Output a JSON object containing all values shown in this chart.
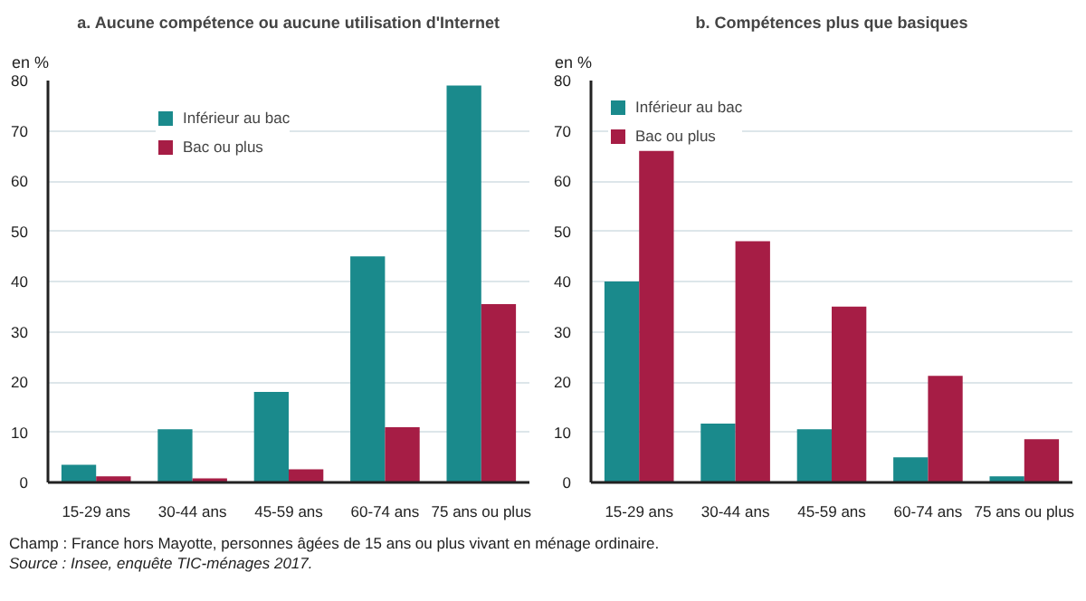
{
  "chart_data": [
    {
      "type": "bar",
      "title": "a. Aucune compétence ou aucune utilisation d'Internet",
      "ylabel": "en %",
      "categories": [
        "15-29 ans",
        "30-44 ans",
        "45-59 ans",
        "60-74 ans",
        "75 ans ou plus"
      ],
      "series": [
        {
          "name": "Inférieur au bac",
          "color": "#1a8a8c",
          "values": [
            3.5,
            10.6,
            18,
            45,
            79
          ]
        },
        {
          "name": "Bac ou plus",
          "color": "#a61d45",
          "values": [
            1.2,
            0.8,
            2.6,
            11,
            35.5
          ]
        }
      ],
      "ylim": [
        0,
        80
      ],
      "yticks": [
        0,
        10,
        20,
        30,
        40,
        50,
        60,
        70,
        80
      ],
      "grid": "y",
      "legend": "top",
      "annotations": [
        "Champ : France hors Mayotte, personnes âgées de 15 ans ou plus vivant en ménage ordinaire.",
        "Source : Insee, enquête TIC-ménages 2017."
      ]
    },
    {
      "type": "bar",
      "title": "b. Compétences plus que basiques",
      "ylabel": "en %",
      "categories": [
        "15-29 ans",
        "30-44 ans",
        "45-59 ans",
        "60-74 ans",
        "75 ans ou plus"
      ],
      "series": [
        {
          "name": "Inférieur au bac",
          "color": "#1a8a8c",
          "values": [
            40,
            11.7,
            10.6,
            5,
            1.2
          ]
        },
        {
          "name": "Bac ou plus",
          "color": "#a61d45",
          "values": [
            66,
            48,
            35,
            21.2,
            8.6
          ]
        }
      ],
      "ylim": [
        0,
        80
      ],
      "yticks": [
        0,
        10,
        20,
        30,
        40,
        50,
        60,
        70,
        80
      ],
      "grid": "y",
      "legend": "top left"
    }
  ]
}
